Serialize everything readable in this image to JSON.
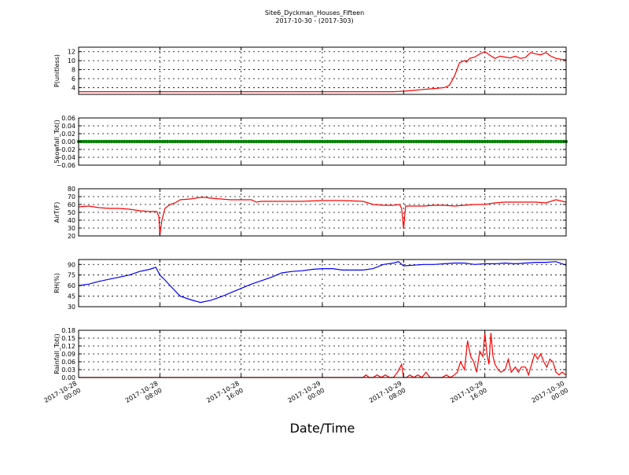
{
  "figure": {
    "title": "Site6_Dyckman_Houses_Fifteen",
    "subtitle": "2017-10-30 - (2017-303)",
    "xlabel": "Date/Time",
    "x_ticks": [
      {
        "line1": "2017-10-28",
        "line2": "00:00",
        "t": 0
      },
      {
        "line1": "2017-10-28",
        "line2": "08:00",
        "t": 8
      },
      {
        "line1": "2017-10-28",
        "line2": "16:00",
        "t": 16
      },
      {
        "line1": "2017-10-29",
        "line2": "00:00",
        "t": 24
      },
      {
        "line1": "2017-10-29",
        "line2": "08:00",
        "t": 32
      },
      {
        "line1": "2017-10-29",
        "line2": "16:00",
        "t": 40
      },
      {
        "line1": "2017-10-30",
        "line2": "00:00",
        "t": 48
      }
    ]
  },
  "chart_data": [
    {
      "type": "line",
      "ylabel": "P(unitless)",
      "color": "#ff0000",
      "ylim": [
        2.5,
        13
      ],
      "yticks": [
        "4",
        "6",
        "8",
        "10",
        "12"
      ],
      "ytick_values": [
        4,
        6,
        8,
        10,
        12
      ],
      "grid": true,
      "x": [
        0,
        4,
        8,
        12,
        16,
        20,
        24,
        28,
        31,
        32,
        33,
        34,
        35,
        36,
        36.5,
        37,
        37.5,
        38,
        38.2,
        38.5,
        39,
        39.5,
        40,
        40.5,
        41,
        41.5,
        42,
        42.5,
        43,
        43.5,
        44,
        44.5,
        45,
        45.5,
        46,
        46.5,
        47,
        47.5,
        48
      ],
      "y": [
        3.1,
        3.1,
        3.1,
        3.1,
        3.1,
        3.1,
        3.1,
        3.1,
        3.1,
        3.2,
        3.4,
        3.6,
        3.8,
        4.0,
        4.5,
        6.5,
        9.5,
        10.0,
        9.7,
        10.5,
        10.8,
        11.5,
        12.0,
        11.2,
        10.5,
        11.0,
        10.8,
        10.6,
        11.0,
        10.5,
        10.7,
        11.8,
        11.5,
        11.3,
        11.8,
        11.0,
        10.5,
        10.3,
        10.2
      ]
    },
    {
      "type": "scatter",
      "ylabel": "Snowfall_Tot()",
      "color": "#008000",
      "ylim": [
        -0.06,
        0.06
      ],
      "yticks": [
        "0.06",
        "0.04",
        "0.02",
        "0.00",
        "−0.02",
        "−0.04",
        "−0.06"
      ],
      "ytick_values": [
        0.06,
        0.04,
        0.02,
        0.0,
        -0.02,
        -0.04,
        -0.06
      ],
      "grid": true,
      "x_start": 0,
      "x_end": 48,
      "step": 0.25,
      "value": 0.0
    },
    {
      "type": "line",
      "ylabel": "AirT(F)",
      "color": "#ff0000",
      "ylim": [
        20,
        80
      ],
      "yticks": [
        "80",
        "70",
        "60",
        "50",
        "40",
        "30",
        "20"
      ],
      "ytick_values": [
        80,
        70,
        60,
        50,
        40,
        30,
        20
      ],
      "grid": true,
      "x": [
        0,
        1,
        2,
        3,
        4,
        5,
        6,
        7,
        7.7,
        7.9,
        8.0,
        8.2,
        8.5,
        9,
        9.5,
        10,
        11,
        12,
        12.5,
        13,
        14,
        15,
        16,
        17,
        17.5,
        18,
        20,
        22,
        24,
        26,
        28,
        29,
        30,
        31,
        31.6,
        31.8,
        32.0,
        32.2,
        33,
        34,
        35,
        36,
        37,
        38,
        39,
        40,
        41,
        42,
        43,
        44,
        45,
        46,
        47,
        48
      ],
      "y": [
        57,
        58,
        56,
        55,
        55,
        54,
        52,
        51,
        51,
        45,
        21,
        40,
        55,
        60,
        62,
        66,
        67,
        69,
        69,
        68,
        67,
        66,
        66,
        66,
        63,
        64,
        64,
        64,
        65,
        65,
        64,
        60,
        59,
        59,
        60,
        55,
        29,
        58,
        58,
        58,
        59,
        59,
        58,
        59,
        60,
        60,
        62,
        63,
        63,
        63,
        63,
        62,
        66,
        63
      ]
    },
    {
      "type": "line",
      "ylabel": "RH(%)",
      "color": "#0000ff",
      "ylim": [
        30,
        97
      ],
      "yticks": [
        "90",
        "75",
        "60",
        "45",
        "30"
      ],
      "ytick_values": [
        90,
        75,
        60,
        45,
        30
      ],
      "grid": true,
      "x": [
        0,
        1,
        2,
        3,
        4,
        5,
        6,
        7,
        7.6,
        8,
        8.5,
        9,
        10,
        11,
        12,
        13,
        14,
        15,
        16,
        17,
        18,
        19,
        20,
        21,
        22,
        23,
        24,
        25,
        26,
        27,
        28,
        29,
        30,
        31,
        31.5,
        32,
        33,
        34,
        35,
        36,
        37,
        38,
        39,
        40,
        41,
        42,
        43,
        44,
        45,
        46,
        47,
        48
      ],
      "y": [
        60,
        62,
        66,
        69,
        72,
        75,
        80,
        83,
        86,
        75,
        68,
        60,
        45,
        40,
        36,
        39,
        44,
        50,
        56,
        62,
        67,
        72,
        78,
        80,
        81,
        83,
        84,
        84,
        82,
        82,
        82,
        84,
        90,
        92,
        94,
        88,
        89,
        90,
        90,
        91,
        92,
        92,
        90,
        91,
        91,
        92,
        91,
        92,
        93,
        93,
        94,
        89
      ]
    },
    {
      "type": "line",
      "ylabel": "Rainfall_Tot()",
      "color": "#ff0000",
      "ylim": [
        0,
        0.18
      ],
      "yticks": [
        "0.18",
        "0.15",
        "0.12",
        "0.09",
        "0.06",
        "0.03",
        "0.00"
      ],
      "ytick_values": [
        0.18,
        0.15,
        0.12,
        0.09,
        0.06,
        0.03,
        0.0
      ],
      "grid": true,
      "x": [
        0,
        10,
        20,
        28,
        28.3,
        28.6,
        29,
        29.4,
        29.8,
        30.2,
        30.6,
        31,
        31.4,
        31.8,
        32,
        32.3,
        32.6,
        33,
        33.4,
        33.8,
        34.2,
        34.6,
        35,
        35.4,
        35.8,
        36.2,
        36.6,
        37,
        37.3,
        37.6,
        38,
        38.3,
        38.6,
        38.9,
        39.2,
        39.5,
        39.8,
        40,
        40.2,
        40.4,
        40.6,
        40.8,
        41,
        41.3,
        41.6,
        42,
        42.3,
        42.6,
        43,
        43.3,
        43.6,
        44,
        44.3,
        44.6,
        44.9,
        45.2,
        45.5,
        45.8,
        46.1,
        46.4,
        46.7,
        47,
        47.3,
        47.6,
        48
      ],
      "y": [
        0,
        0,
        0,
        0,
        0.01,
        0.0,
        0.0,
        0.01,
        0.0,
        0.01,
        0.0,
        0.0,
        0.02,
        0.05,
        0.0,
        0.0,
        0.01,
        0.0,
        0.01,
        0.0,
        0.02,
        0.0,
        0.0,
        0.0,
        0.0,
        0.01,
        0.0,
        0.01,
        0.02,
        0.06,
        0.03,
        0.14,
        0.08,
        0.06,
        0.02,
        0.1,
        0.08,
        0.17,
        0.09,
        0.05,
        0.17,
        0.08,
        0.05,
        0.03,
        0.02,
        0.03,
        0.07,
        0.02,
        0.04,
        0.02,
        0.04,
        0.04,
        0.01,
        0.05,
        0.09,
        0.07,
        0.09,
        0.06,
        0.04,
        0.07,
        0.06,
        0.02,
        0.01,
        0.02,
        0.01
      ]
    }
  ]
}
